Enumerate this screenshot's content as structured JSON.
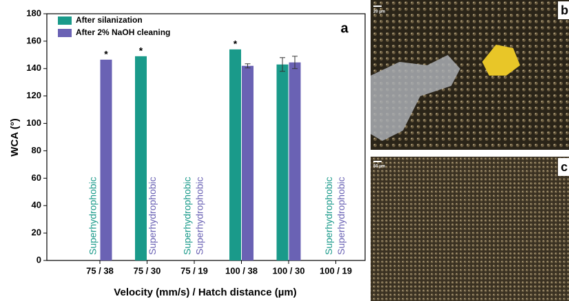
{
  "chart_data": {
    "type": "bar",
    "panel_label": "a",
    "x_label": "Velocity (mm/s) / Hatch distance (µm)",
    "y_label": "WCA (°)",
    "categories": [
      "75 / 38",
      "75 / 30",
      "75 / 19",
      "100 / 38",
      "100 / 30",
      "100 / 19"
    ],
    "series": [
      {
        "name": "After silanization",
        "color": "#1a9a8a",
        "values": [
          null,
          149,
          null,
          154,
          143,
          null
        ],
        "errors": [
          null,
          null,
          null,
          null,
          5,
          null
        ],
        "stars": [
          null,
          "*",
          null,
          "*",
          null,
          null
        ],
        "bar_labels": [
          "Superhydrophobic",
          null,
          "Superhydrophobic",
          null,
          null,
          "Superhydrophobic"
        ]
      },
      {
        "name": "After 2% NaOH cleaning",
        "color": "#6a62b4",
        "values": [
          146.5,
          null,
          null,
          142,
          144.5,
          null
        ],
        "errors": [
          null,
          null,
          null,
          1.5,
          4.5,
          null
        ],
        "stars": [
          "*",
          null,
          null,
          null,
          null,
          null
        ],
        "bar_labels": [
          null,
          "Superhydrophobic",
          "Superhydrophobic",
          null,
          null,
          "Superhydrophobic"
        ]
      }
    ],
    "ylim": [
      0,
      180
    ],
    "yticks": [
      0,
      20,
      40,
      60,
      80,
      100,
      120,
      140,
      160,
      180
    ],
    "legend": "top-left"
  },
  "panels": [
    {
      "label": "b",
      "scale": "20 µm"
    },
    {
      "label": "c",
      "scale": "50 µm"
    }
  ]
}
